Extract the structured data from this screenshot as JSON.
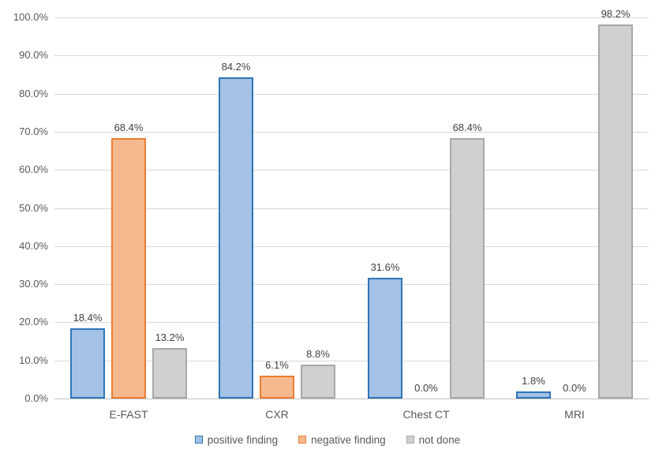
{
  "chart_data": {
    "type": "bar",
    "title": "",
    "xlabel": "",
    "ylabel": "",
    "categories": [
      "E-FAST",
      "CXR",
      "Chest CT",
      "MRI"
    ],
    "series": [
      {
        "name": "positive finding",
        "values": [
          18.4,
          84.2,
          31.6,
          1.8
        ],
        "labels": [
          "18.4%",
          "84.2%",
          "31.6%",
          "1.8%"
        ],
        "fill": "#a3c2e6",
        "border": "#2e75b6"
      },
      {
        "name": "negative finding",
        "values": [
          68.4,
          6.1,
          0.0,
          0.0
        ],
        "labels": [
          "68.4%",
          "6.1%",
          "0.0%",
          "0.0%"
        ],
        "fill": "#f5b98f",
        "border": "#ed7d31"
      },
      {
        "name": "not done",
        "values": [
          13.2,
          8.8,
          68.4,
          98.2
        ],
        "labels": [
          "13.2%",
          "8.8%",
          "68.4%",
          "98.2%"
        ],
        "fill": "#d1d0d0",
        "border": "#a9a7a7"
      }
    ],
    "y_axis": {
      "min": 0,
      "max": 100,
      "step": 10,
      "ticks": [
        "0.0%",
        "10.0%",
        "20.0%",
        "30.0%",
        "40.0%",
        "50.0%",
        "60.0%",
        "70.0%",
        "80.0%",
        "90.0%",
        "100.0%"
      ]
    },
    "grid": true,
    "legend_position": "bottom",
    "colors": {
      "gridline": "#d9d9d9",
      "axis_line": "#bfbfbf",
      "tick_text": "#595959",
      "data_label_text": "#404040"
    }
  }
}
